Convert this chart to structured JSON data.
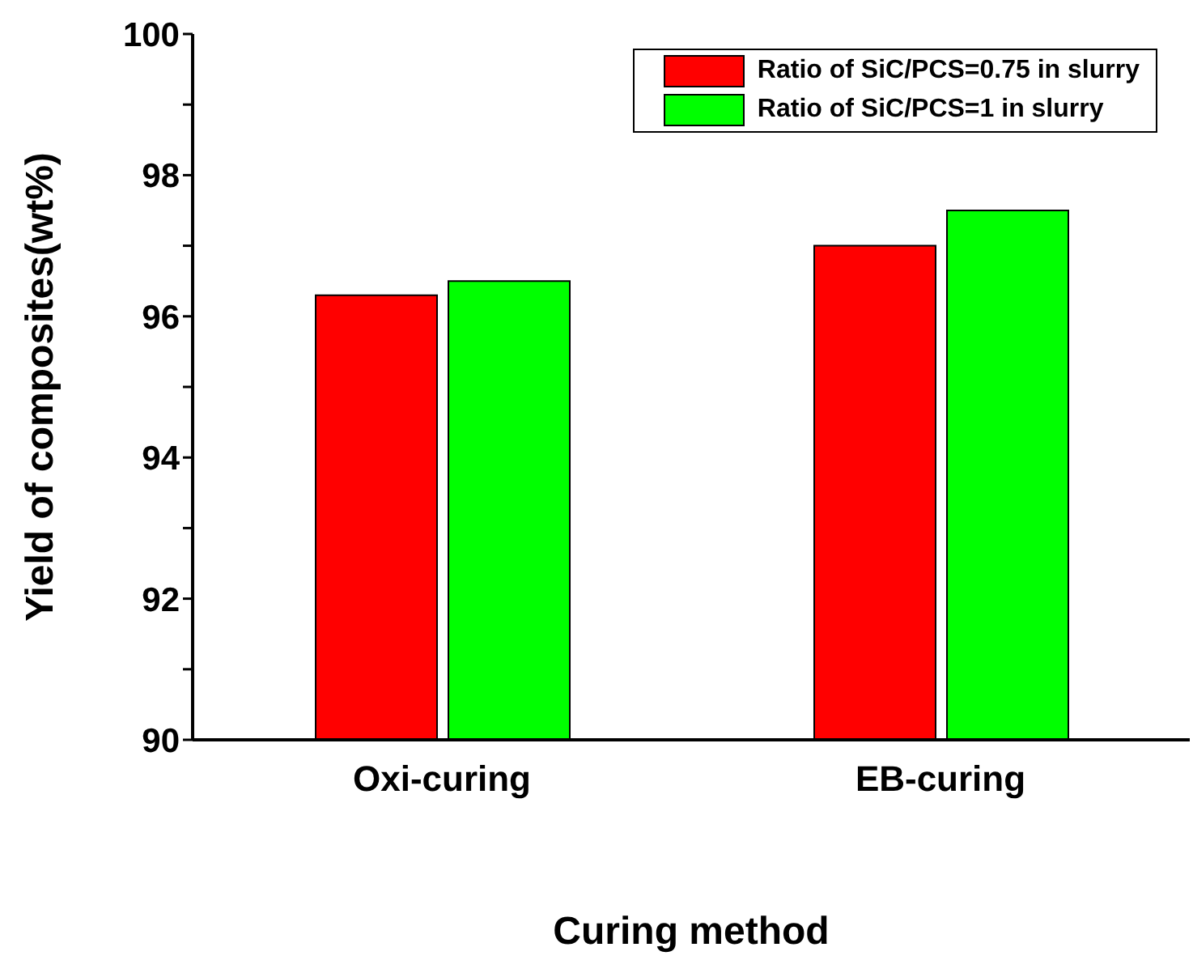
{
  "chart_data": {
    "type": "bar",
    "xlabel": "Curing method",
    "ylabel": "Yield of composites(wt%)",
    "categories": [
      "Oxi-curing",
      "EB-curing"
    ],
    "series": [
      {
        "name": "Ratio of SiC/PCS=0.75 in slurry",
        "color": "#ff0000",
        "values": [
          96.3,
          97.0
        ]
      },
      {
        "name": "Ratio of SiC/PCS=1 in slurry",
        "color": "#00ff00",
        "values": [
          96.5,
          97.5
        ]
      }
    ],
    "ylim": [
      90,
      100
    ],
    "yticks": [
      90,
      {
        "value": 91,
        "label": null
      },
      92,
      {
        "value": 93,
        "label": null
      },
      94,
      {
        "value": 95,
        "label": null
      },
      96,
      {
        "value": 97,
        "label": null
      },
      98,
      {
        "value": 99,
        "label": null
      },
      100
    ],
    "grid": false,
    "legend": "top right"
  }
}
